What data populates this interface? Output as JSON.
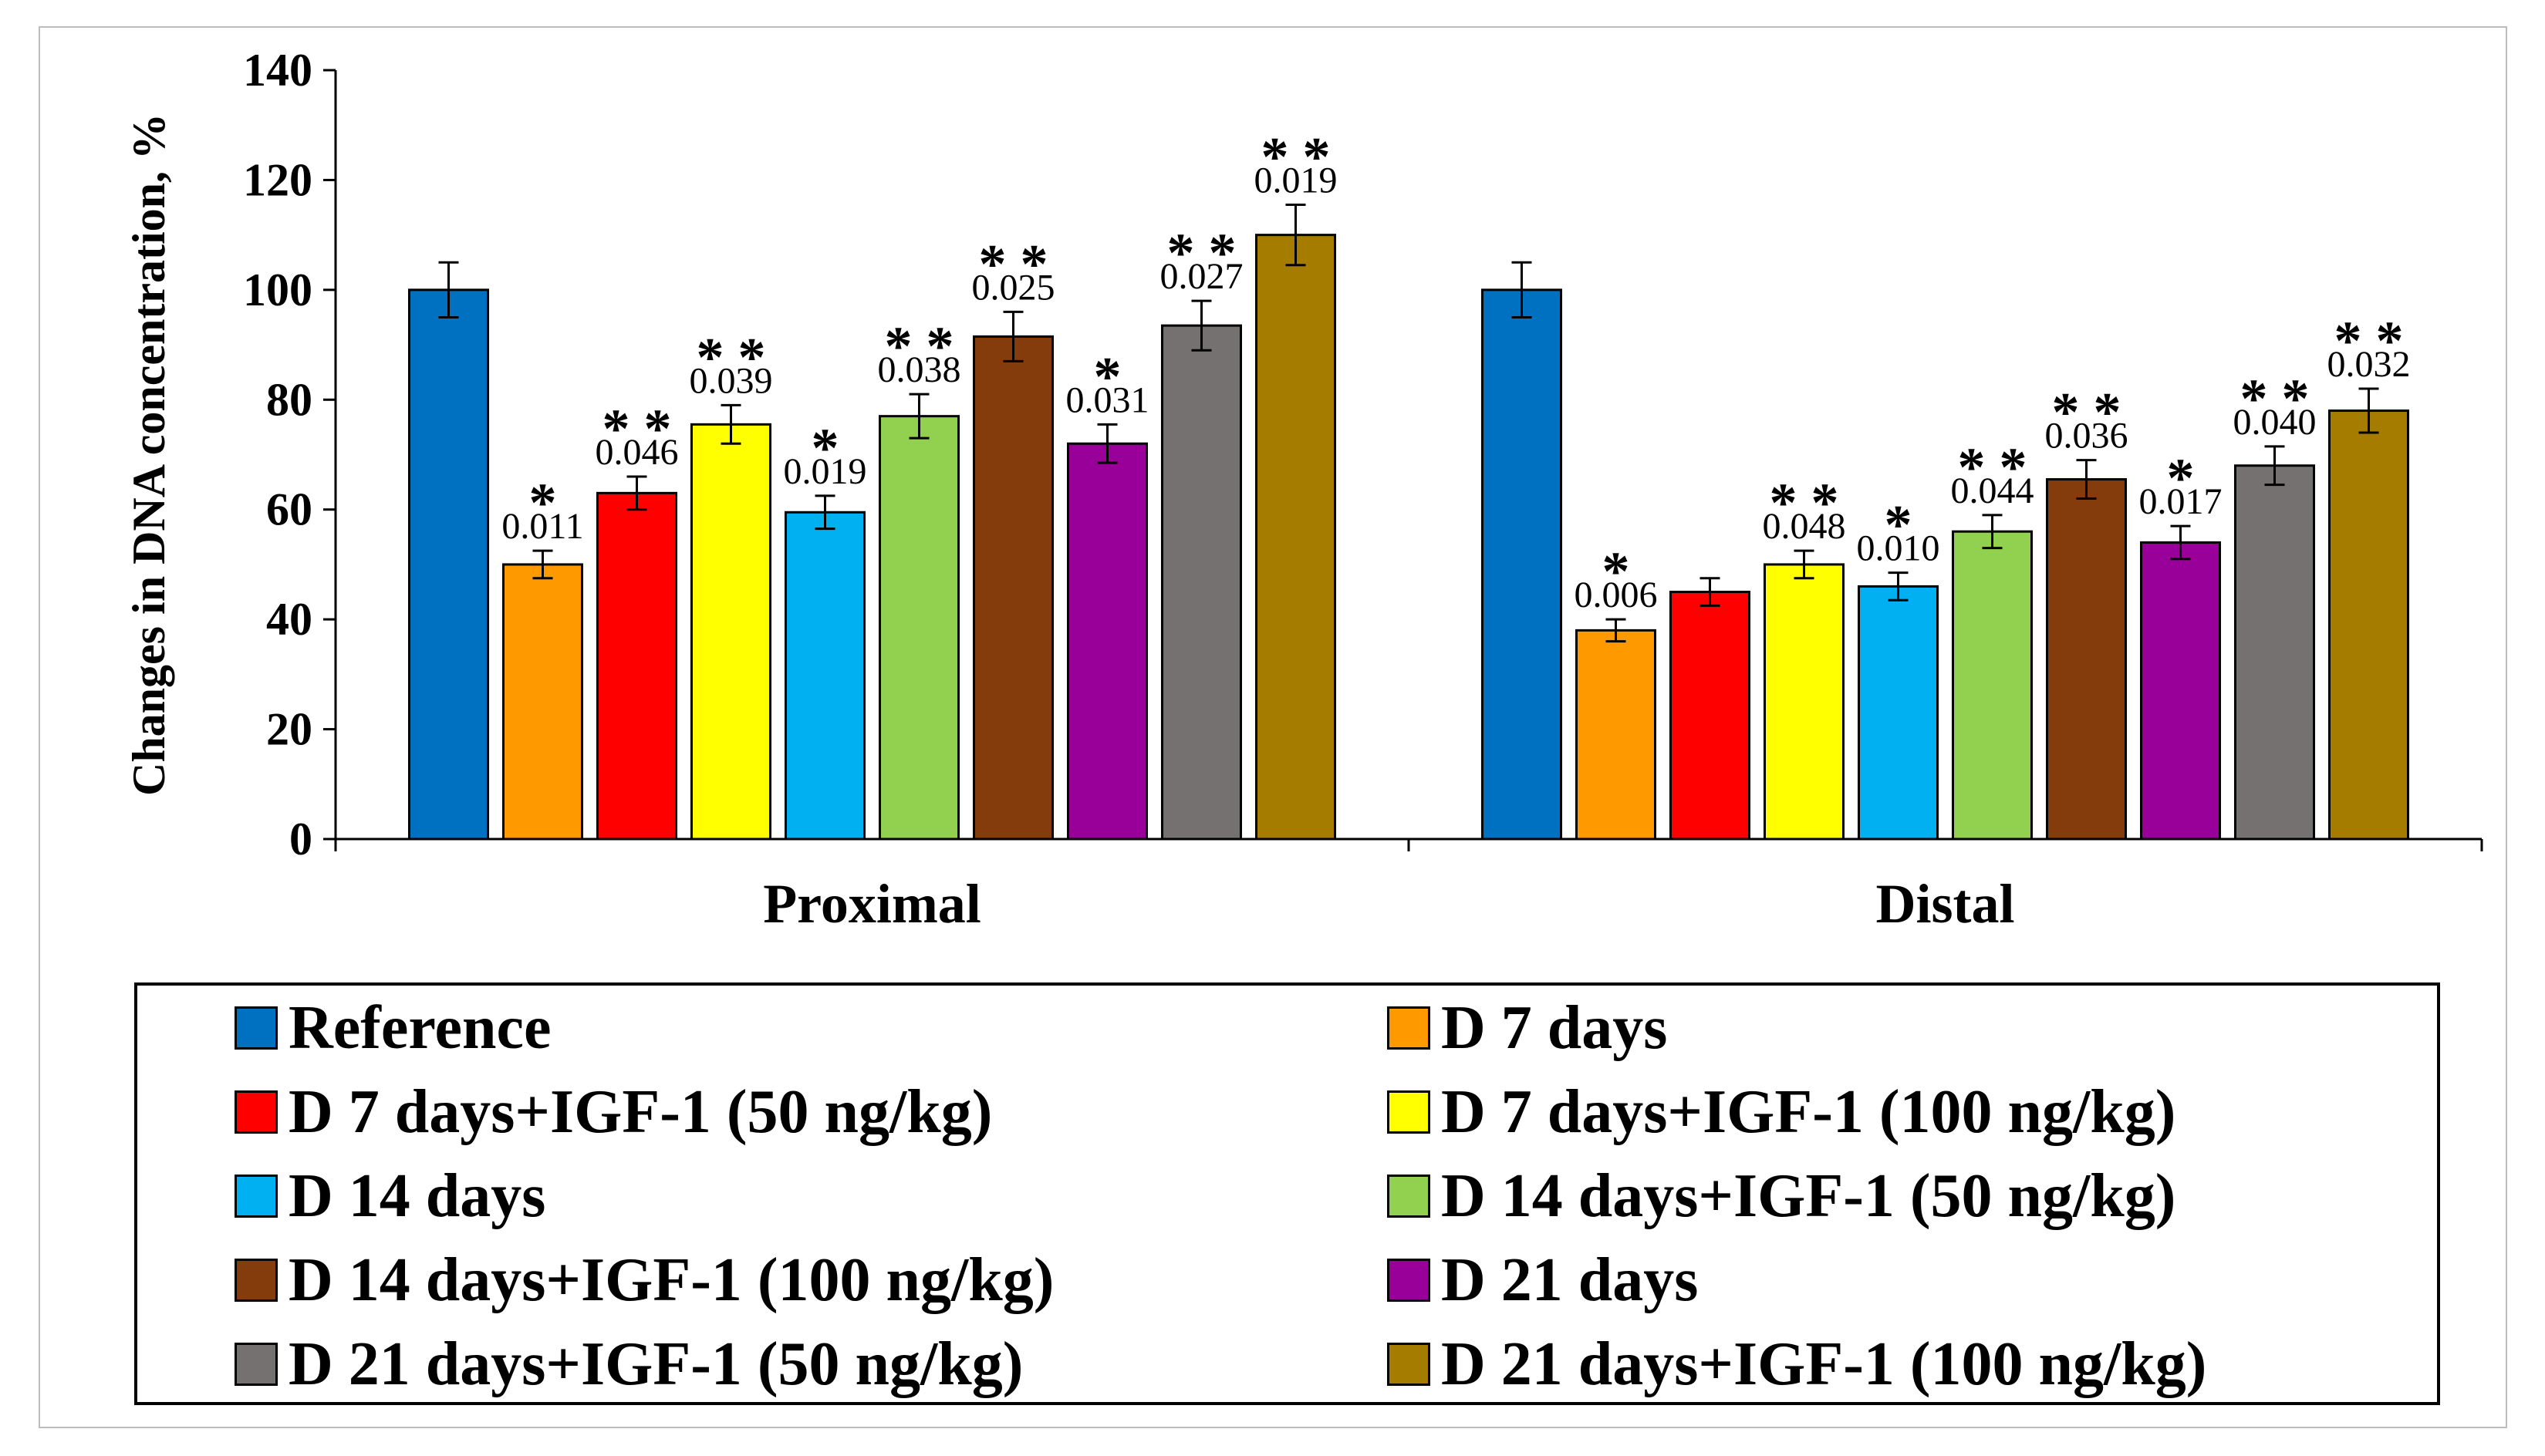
{
  "chart_data": {
    "type": "bar",
    "title": "",
    "xlabel": "",
    "ylabel": "Changes in DNA concentration, %",
    "ylim": [
      0,
      140
    ],
    "yticks": [
      0,
      20,
      40,
      60,
      80,
      100,
      120,
      140
    ],
    "grid": false,
    "legend_position": "bottom",
    "categories": [
      "Proximal",
      "Distal"
    ],
    "series": [
      {
        "name": "Reference",
        "color": "#0070c0",
        "values": [
          100,
          100
        ],
        "errors": [
          5,
          5
        ],
        "stars": [
          "",
          ""
        ],
        "pvalues": [
          "",
          ""
        ]
      },
      {
        "name": "D 7 days",
        "color": "#ff9900",
        "values": [
          50,
          38
        ],
        "errors": [
          2.5,
          2
        ],
        "stars": [
          "*",
          "*"
        ],
        "pvalues": [
          "0.011",
          "0.006"
        ]
      },
      {
        "name": "D 7 days+IGF-1 (50 ng/kg)",
        "color": "#ff0000",
        "values": [
          63,
          45
        ],
        "errors": [
          3,
          2.5
        ],
        "stars": [
          "**",
          ""
        ],
        "pvalues": [
          "0.046",
          ""
        ]
      },
      {
        "name": "D 7 days+IGF-1 (100 ng/kg)",
        "color": "#ffff00",
        "values": [
          75.5,
          50
        ],
        "errors": [
          3.5,
          2.5
        ],
        "stars": [
          "**",
          "**"
        ],
        "pvalues": [
          "0.039",
          "0.048"
        ]
      },
      {
        "name": "D 14 days",
        "color": "#00b0f0",
        "values": [
          59.5,
          46
        ],
        "errors": [
          3,
          2.5
        ],
        "stars": [
          "*",
          "*"
        ],
        "pvalues": [
          "0.019",
          "0.010"
        ]
      },
      {
        "name": "D 14 days+IGF-1 (50 ng/kg)",
        "color": "#92d050",
        "values": [
          77,
          56
        ],
        "errors": [
          4,
          3
        ],
        "stars": [
          "**",
          "**"
        ],
        "pvalues": [
          "0.038",
          "0.044"
        ]
      },
      {
        "name": "D 14 days+IGF-1 (100 ng/kg)",
        "color": "#843c0c",
        "values": [
          91.5,
          65.5
        ],
        "errors": [
          4.5,
          3.5
        ],
        "stars": [
          "**",
          "**"
        ],
        "pvalues": [
          "0.025",
          "0.036"
        ]
      },
      {
        "name": "D 21 days",
        "color": "#990099",
        "values": [
          72,
          54
        ],
        "errors": [
          3.5,
          3
        ],
        "stars": [
          "*",
          "*"
        ],
        "pvalues": [
          "0.031",
          "0.017"
        ]
      },
      {
        "name": "D 21 days+IGF-1 (50 ng/kg)",
        "color": "#767171",
        "values": [
          93.5,
          68
        ],
        "errors": [
          4.5,
          3.5
        ],
        "stars": [
          "**",
          "**"
        ],
        "pvalues": [
          "0.027",
          "0.040"
        ]
      },
      {
        "name": "D 21 days+IGF-1 (100 ng/kg)",
        "color": "#a67c00",
        "values": [
          110,
          78
        ],
        "errors": [
          5.5,
          4
        ],
        "stars": [
          "**",
          "**"
        ],
        "pvalues": [
          "0.019",
          "0.032"
        ]
      }
    ]
  }
}
